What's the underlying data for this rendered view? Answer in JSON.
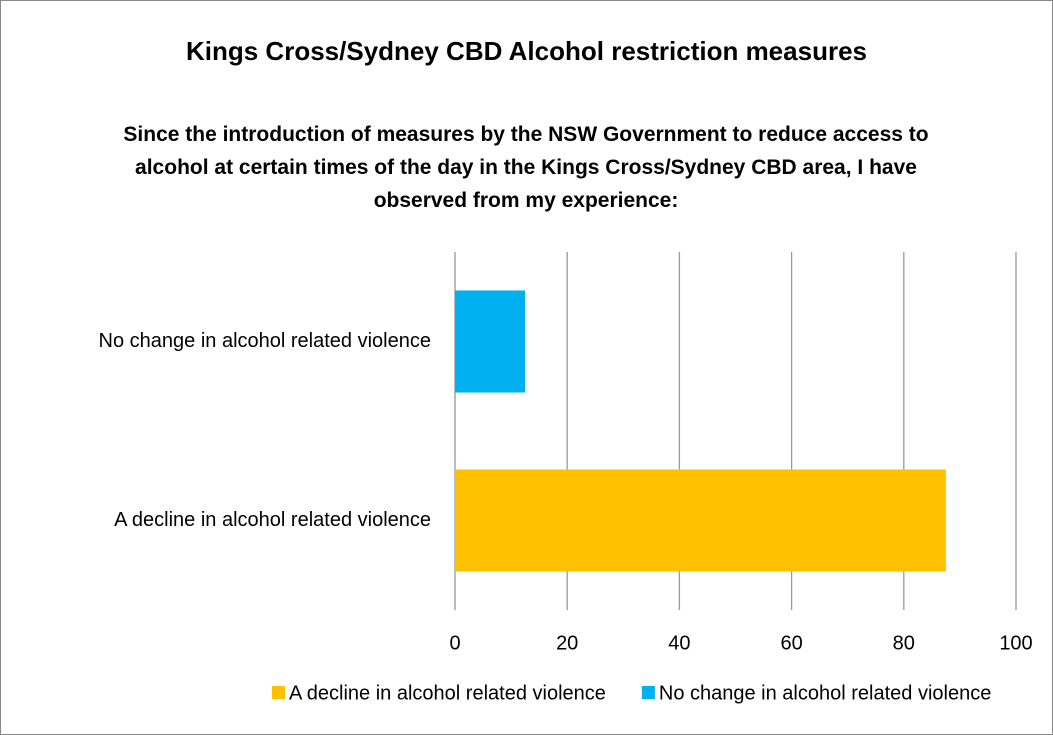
{
  "chart_data": {
    "type": "hbar",
    "title": "Kings Cross/Sydney CBD Alcohol restriction measures",
    "subtitle": "Since the introduction of measures by the NSW Government to reduce access to alcohol at certain times of the day in the Kings Cross/Sydney CBD area, I have observed from my experience:",
    "categories": [
      "A decline in alcohol related violence",
      "No change in alcohol related violence"
    ],
    "series": [
      {
        "name": "A decline in alcohol related violence",
        "color": "#ffc000",
        "values": [
          87.5,
          null
        ]
      },
      {
        "name": "No change in alcohol related violence",
        "color": "#00b0f0",
        "values": [
          null,
          12.5
        ]
      }
    ],
    "xlim": [
      0,
      100
    ],
    "xticks": [
      0,
      20,
      40,
      60,
      80,
      100
    ],
    "grid": true,
    "legend": "bottom"
  }
}
